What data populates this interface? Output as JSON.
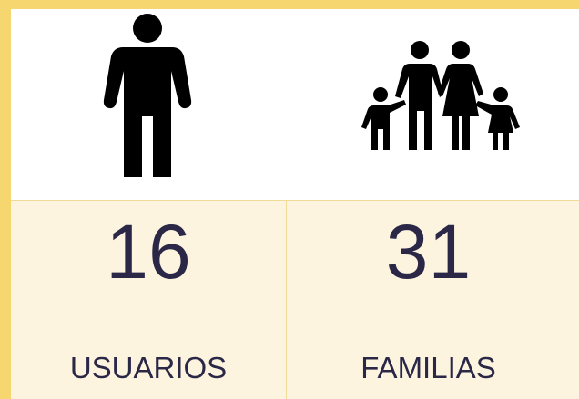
{
  "stats": [
    {
      "value": 16,
      "label": "USUARIOS"
    },
    {
      "value": 31,
      "label": "FAMILIAS"
    }
  ]
}
